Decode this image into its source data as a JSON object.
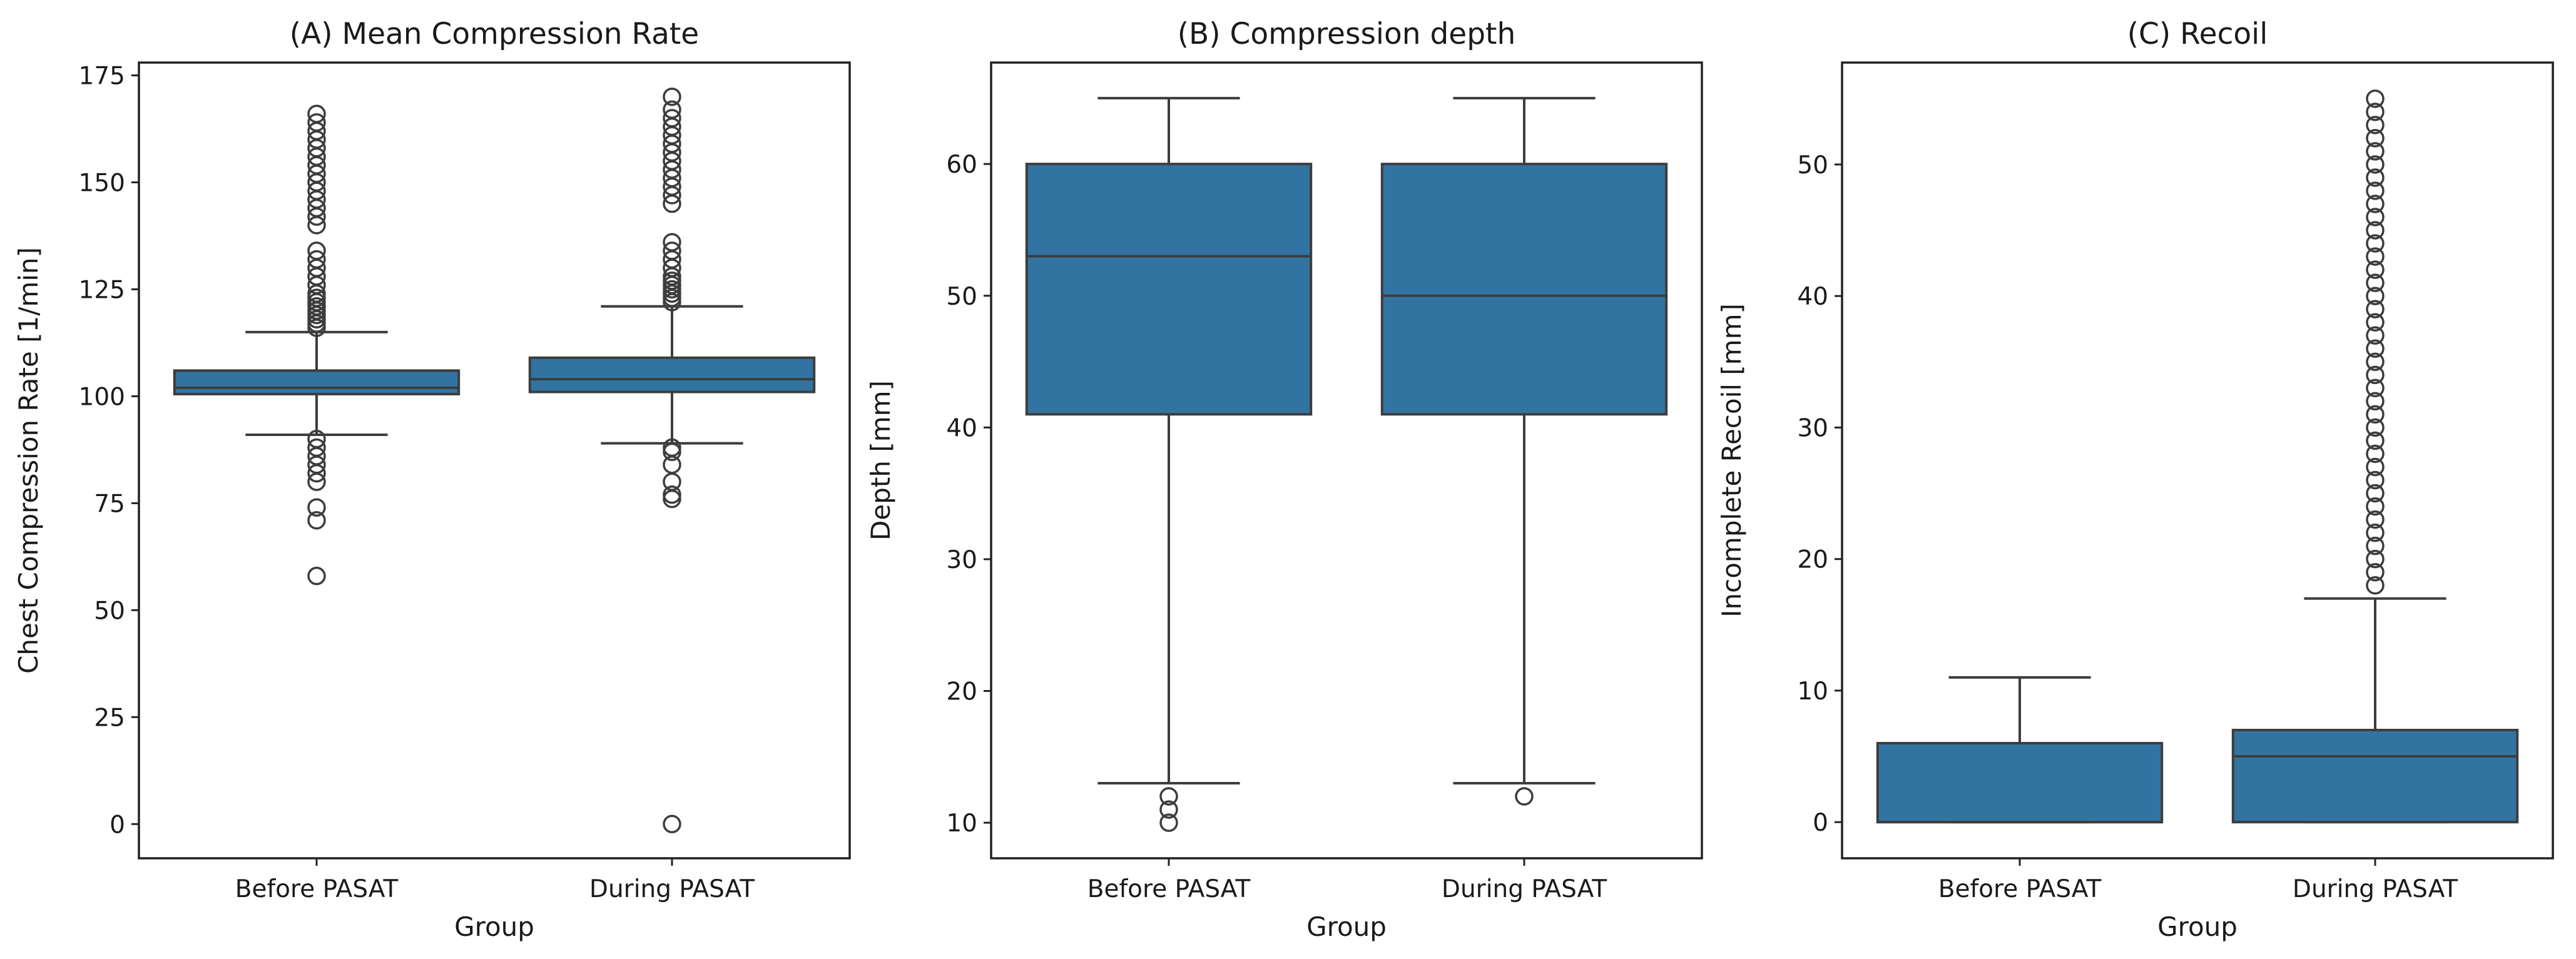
{
  "colors": {
    "box_fill": "#3274a1",
    "line": "#3d3d3d",
    "frame": "#222222",
    "flier_edge": "#3d3d3d"
  },
  "chart_data": [
    {
      "type": "box",
      "title": "(A) Mean Compression Rate",
      "xlabel": "Group",
      "ylabel": "Chest Compression Rate [1/min]",
      "categories": [
        "Before PASAT",
        "During PASAT"
      ],
      "ylim": [
        -8,
        178
      ],
      "yticks": [
        0,
        25,
        50,
        75,
        100,
        125,
        150,
        175
      ],
      "boxes": [
        {
          "name": "Before PASAT",
          "whislo": 91,
          "q1": 100.5,
          "med": 102,
          "q3": 106,
          "whishi": 115,
          "fliers": [
            116,
            117,
            118,
            119,
            120,
            121,
            122,
            123,
            124,
            126,
            128,
            130,
            132,
            134,
            140,
            142,
            144,
            146,
            148,
            150,
            152,
            154,
            156,
            158,
            160,
            162,
            164,
            166,
            90,
            88,
            86,
            84,
            82,
            80,
            74,
            71,
            58
          ]
        },
        {
          "name": "During PASAT",
          "whislo": 89,
          "q1": 101,
          "med": 104,
          "q3": 109,
          "whishi": 121,
          "fliers": [
            122,
            123,
            124,
            125,
            126,
            127,
            128,
            130,
            132,
            134,
            136,
            145,
            147,
            149,
            151,
            153,
            155,
            157,
            159,
            161,
            163,
            165,
            167,
            170,
            88,
            87,
            84,
            80,
            77,
            76,
            0
          ]
        }
      ]
    },
    {
      "type": "box",
      "title": "(B) Compression depth",
      "xlabel": "Group",
      "ylabel": "Depth [mm]",
      "categories": [
        "Before PASAT",
        "During PASAT"
      ],
      "ylim": [
        7.3,
        67.7
      ],
      "yticks": [
        10,
        20,
        30,
        40,
        50,
        60
      ],
      "boxes": [
        {
          "name": "Before PASAT",
          "whislo": 13,
          "q1": 41,
          "med": 53,
          "q3": 60,
          "whishi": 65,
          "fliers": [
            12,
            11,
            10
          ]
        },
        {
          "name": "During PASAT",
          "whislo": 13,
          "q1": 41,
          "med": 50,
          "q3": 60,
          "whishi": 65,
          "fliers": [
            12
          ]
        }
      ]
    },
    {
      "type": "box",
      "title": "(C) Recoil",
      "xlabel": "Group",
      "ylabel": "Incomplete Recoil [mm]",
      "categories": [
        "Before PASAT",
        "During PASAT"
      ],
      "ylim": [
        -2.75,
        57.75
      ],
      "yticks": [
        0,
        10,
        20,
        30,
        40,
        50
      ],
      "boxes": [
        {
          "name": "Before PASAT",
          "whislo": 0,
          "q1": 0,
          "med": 0,
          "q3": 6,
          "whishi": 11,
          "fliers": []
        },
        {
          "name": "During PASAT",
          "whislo": 0,
          "q1": 0,
          "med": 5,
          "q3": 7,
          "whishi": 17,
          "fliers": [
            18,
            19,
            20,
            21,
            22,
            23,
            24,
            25,
            26,
            27,
            28,
            29,
            30,
            31,
            32,
            33,
            34,
            35,
            36,
            37,
            38,
            39,
            40,
            41,
            42,
            43,
            44,
            45,
            46,
            47,
            48,
            49,
            50,
            51,
            52,
            53,
            54,
            55
          ]
        }
      ]
    }
  ]
}
